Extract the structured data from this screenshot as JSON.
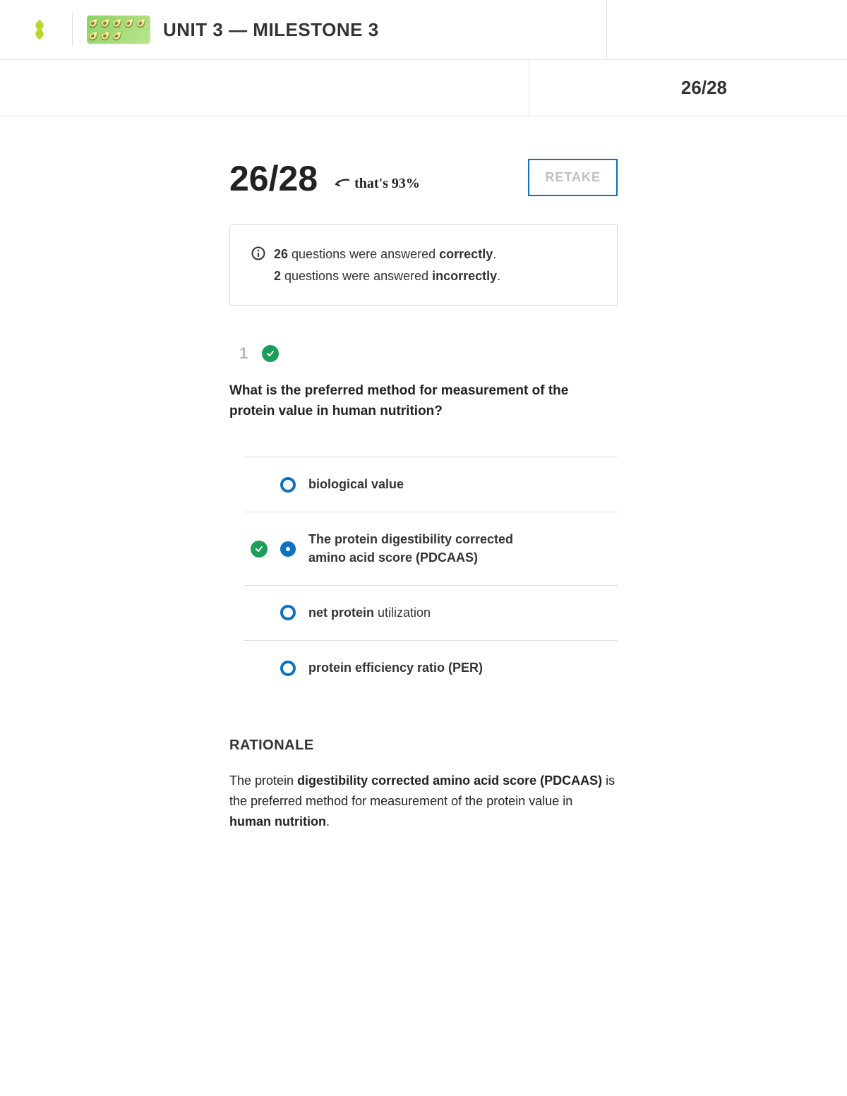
{
  "header": {
    "unit_title": "UNIT 3 — MILESTONE 3",
    "score_short": "26/28"
  },
  "score": {
    "big": "26/28",
    "percent_note": "that's 93%",
    "retake_label": "RETAKE"
  },
  "summary": {
    "correct_count": "26",
    "correct_suffix": " questions were answered ",
    "correct_word": "correctly",
    "incorrect_count": "2",
    "incorrect_suffix": " questions were answered ",
    "incorrect_word": "incorrectly"
  },
  "question": {
    "number": "1",
    "text": "What is the preferred method for measurement of the protein value in human nutrition?",
    "options": [
      {
        "label_strong": "biological value",
        "label_light": "",
        "selected": false,
        "correct": false
      },
      {
        "label_strong": "The protein digestibility corrected amino acid score (PDCAAS)",
        "label_light": "",
        "selected": true,
        "correct": true
      },
      {
        "label_strong": "net protein",
        "label_light": " utilization",
        "selected": false,
        "correct": false
      },
      {
        "label_strong": "protein efficiency ratio (PER)",
        "label_light": "",
        "selected": false,
        "correct": false
      }
    ]
  },
  "rationale": {
    "heading": "RATIONALE",
    "pre": "The protein ",
    "b1": "digestibility corrected amino acid score (PDCAAS)",
    "mid": " is the preferred method for measurement of the protein value in ",
    "b2": "human nutrition",
    "post": "."
  },
  "colors": {
    "accent_blue": "#0b72c4",
    "success_green": "#1b9e5a",
    "logo_green": "#b6d72c"
  }
}
